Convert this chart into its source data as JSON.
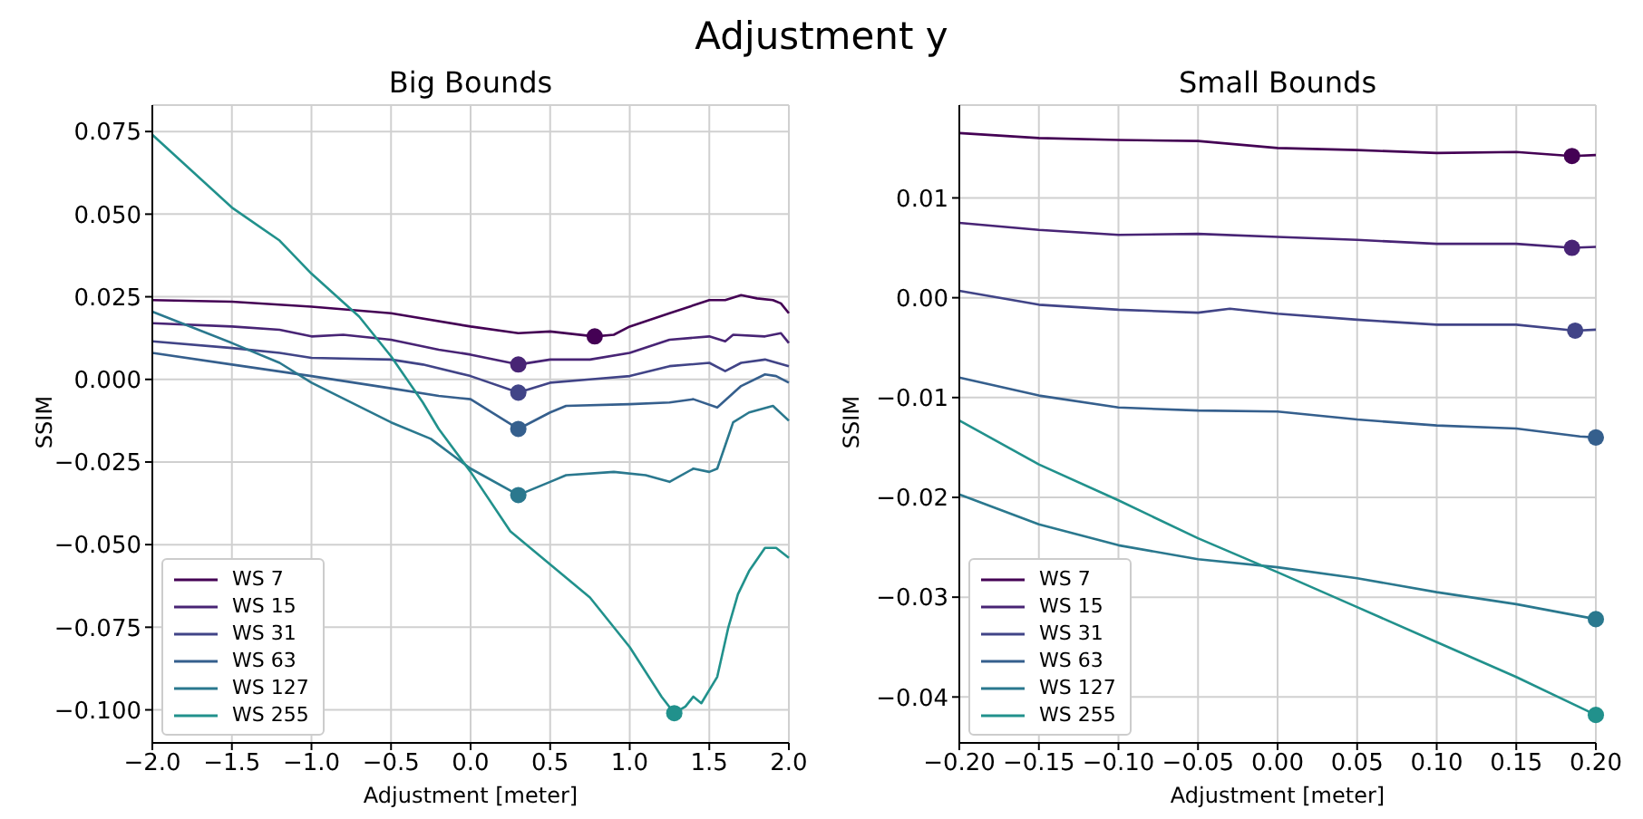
{
  "chart_data": [
    {
      "type": "line",
      "title": "Adjustment y",
      "subtitle": "Big Bounds",
      "xlabel": "Adjustment [meter]",
      "ylabel": "SSIM",
      "xlim": [
        -2,
        2
      ],
      "xticks": [
        {
          "value": -2,
          "label": "−2.0"
        },
        {
          "value": -1.5,
          "label": "−1.5"
        },
        {
          "value": -1,
          "label": "−1.0"
        },
        {
          "value": -0.5,
          "label": "−0.5"
        },
        {
          "value": 0,
          "label": "0.0"
        },
        {
          "value": 0.5,
          "label": "0.5"
        },
        {
          "value": 1,
          "label": "1.0"
        },
        {
          "value": 1.5,
          "label": "1.5"
        },
        {
          "value": 2,
          "label": "2.0"
        }
      ],
      "ylim": [
        -0.11,
        0.083
      ],
      "yticks": [
        {
          "value": -0.1,
          "label": "−0.100"
        },
        {
          "value": -0.075,
          "label": "−0.075"
        },
        {
          "value": -0.05,
          "label": "−0.050"
        },
        {
          "value": -0.025,
          "label": "−0.025"
        },
        {
          "value": 0,
          "label": "0.000"
        },
        {
          "value": 0.025,
          "label": "0.025"
        },
        {
          "value": 0.05,
          "label": "0.050"
        },
        {
          "value": 0.075,
          "label": "0.075"
        }
      ],
      "grid": true,
      "legend": "bottom left",
      "line_style": "solid",
      "series": [
        {
          "name": "WS 7",
          "color": "#440154",
          "x": [
            -2,
            -1.5,
            -1,
            -0.5,
            0,
            0.3,
            0.5,
            0.78,
            0.9,
            1,
            1.25,
            1.5,
            1.6,
            1.7,
            1.8,
            1.9,
            1.95,
            2
          ],
          "values": [
            0.024,
            0.0235,
            0.022,
            0.02,
            0.016,
            0.014,
            0.0145,
            0.013,
            0.0135,
            0.016,
            0.02,
            0.024,
            0.024,
            0.0255,
            0.0245,
            0.024,
            0.023,
            0.02
          ]
        },
        {
          "name": "WS 15",
          "color": "#482475",
          "x": [
            -2,
            -1.5,
            -1.2,
            -1,
            -0.8,
            -0.5,
            -0.2,
            0,
            0.3,
            0.5,
            0.75,
            1,
            1.25,
            1.5,
            1.6,
            1.65,
            1.85,
            1.95,
            2
          ],
          "values": [
            0.017,
            0.016,
            0.015,
            0.013,
            0.0135,
            0.012,
            0.009,
            0.0075,
            0.0045,
            0.006,
            0.006,
            0.008,
            0.012,
            0.013,
            0.0115,
            0.0135,
            0.013,
            0.014,
            0.011
          ]
        },
        {
          "name": "WS 31",
          "color": "#414487",
          "x": [
            -2,
            -1.5,
            -1.2,
            -1,
            -0.5,
            -0.3,
            0,
            0.3,
            0.5,
            0.75,
            1,
            1.25,
            1.5,
            1.6,
            1.7,
            1.85,
            2
          ],
          "values": [
            0.0115,
            0.0095,
            0.008,
            0.0065,
            0.006,
            0.0045,
            0.001,
            -0.004,
            -0.001,
            0.0,
            0.001,
            0.004,
            0.005,
            0.0025,
            0.005,
            0.006,
            0.004
          ]
        },
        {
          "name": "WS 63",
          "color": "#355f8d",
          "x": [
            -2,
            -1.5,
            -1,
            -0.5,
            -0.2,
            0,
            0.3,
            0.5,
            0.6,
            1,
            1.25,
            1.4,
            1.55,
            1.7,
            1.85,
            1.92,
            2
          ],
          "values": [
            0.008,
            0.0045,
            0.001,
            -0.0027,
            -0.005,
            -0.006,
            -0.015,
            -0.01,
            -0.008,
            -0.0075,
            -0.007,
            -0.006,
            -0.0085,
            -0.002,
            0.0015,
            0.001,
            -0.001
          ]
        },
        {
          "name": "WS 127",
          "color": "#2a788e",
          "x": [
            -2,
            -1.5,
            -1.2,
            -1,
            -0.5,
            -0.25,
            0,
            0.3,
            0.5,
            0.6,
            0.9,
            1.1,
            1.25,
            1.4,
            1.5,
            1.55,
            1.6,
            1.65,
            1.75,
            1.9,
            2
          ],
          "values": [
            0.0205,
            0.011,
            0.005,
            -0.001,
            -0.013,
            -0.018,
            -0.027,
            -0.035,
            -0.031,
            -0.029,
            -0.028,
            -0.029,
            -0.031,
            -0.027,
            -0.028,
            -0.027,
            -0.02,
            -0.013,
            -0.01,
            -0.008,
            -0.0125
          ]
        },
        {
          "name": "WS 255",
          "color": "#21918c",
          "x": [
            -2,
            -1.5,
            -1.2,
            -1,
            -0.7,
            -0.5,
            -0.3,
            -0.2,
            0,
            0.25,
            0.5,
            0.75,
            1,
            1.2,
            1.28,
            1.35,
            1.4,
            1.45,
            1.55,
            1.62,
            1.68,
            1.75,
            1.85,
            1.92,
            2
          ],
          "values": [
            0.074,
            0.052,
            0.042,
            0.032,
            0.019,
            0.007,
            -0.007,
            -0.015,
            -0.028,
            -0.046,
            -0.056,
            -0.066,
            -0.081,
            -0.096,
            -0.101,
            -0.099,
            -0.096,
            -0.098,
            -0.09,
            -0.075,
            -0.065,
            -0.058,
            -0.051,
            -0.051,
            -0.054
          ]
        },
        {
          "type": "scatter",
          "color": "#440154",
          "x": [
            0.78
          ],
          "values": [
            0.013
          ]
        },
        {
          "type": "scatter",
          "color": "#482475",
          "x": [
            0.3
          ],
          "values": [
            0.0045
          ]
        },
        {
          "type": "scatter",
          "color": "#414487",
          "x": [
            0.3
          ],
          "values": [
            -0.004
          ]
        },
        {
          "type": "scatter",
          "color": "#355f8d",
          "x": [
            0.3
          ],
          "values": [
            -0.015
          ]
        },
        {
          "type": "scatter",
          "color": "#2a788e",
          "x": [
            0.3
          ],
          "values": [
            -0.035
          ]
        },
        {
          "type": "scatter",
          "color": "#21918c",
          "x": [
            1.28
          ],
          "values": [
            -0.101
          ]
        }
      ]
    },
    {
      "type": "line",
      "subtitle": "Small Bounds",
      "xlabel": "Adjustment [meter]",
      "ylabel": "SSIM",
      "xlim": [
        -0.2,
        0.2
      ],
      "xticks": [
        {
          "value": -0.2,
          "label": "−0.20"
        },
        {
          "value": -0.15,
          "label": "−0.15"
        },
        {
          "value": -0.1,
          "label": "−0.10"
        },
        {
          "value": -0.05,
          "label": "−0.05"
        },
        {
          "value": 0,
          "label": "0.00"
        },
        {
          "value": 0.05,
          "label": "0.05"
        },
        {
          "value": 0.1,
          "label": "0.10"
        },
        {
          "value": 0.15,
          "label": "0.15"
        },
        {
          "value": 0.2,
          "label": "0.20"
        }
      ],
      "ylim": [
        -0.0446,
        0.0193
      ],
      "yticks": [
        {
          "value": -0.04,
          "label": "−0.04"
        },
        {
          "value": -0.03,
          "label": "−0.03"
        },
        {
          "value": -0.02,
          "label": "−0.02"
        },
        {
          "value": -0.01,
          "label": "−0.01"
        },
        {
          "value": 0,
          "label": "0.00"
        },
        {
          "value": 0.01,
          "label": "0.01"
        }
      ],
      "grid": true,
      "legend": "bottom left",
      "line_style": "solid",
      "series": [
        {
          "name": "WS 7",
          "color": "#440154",
          "x": [
            -0.2,
            -0.15,
            -0.1,
            -0.05,
            0,
            0.05,
            0.1,
            0.15,
            0.185,
            0.2
          ],
          "values": [
            0.0165,
            0.016,
            0.0158,
            0.0157,
            0.015,
            0.0148,
            0.0145,
            0.0146,
            0.0142,
            0.0143
          ]
        },
        {
          "name": "WS 15",
          "color": "#482475",
          "x": [
            -0.2,
            -0.15,
            -0.1,
            -0.05,
            0,
            0.05,
            0.1,
            0.15,
            0.185,
            0.2
          ],
          "values": [
            0.0075,
            0.0068,
            0.0063,
            0.0064,
            0.0061,
            0.0058,
            0.0054,
            0.0054,
            0.005,
            0.0051
          ]
        },
        {
          "name": "WS 31",
          "color": "#414487",
          "x": [
            -0.2,
            -0.15,
            -0.1,
            -0.05,
            -0.03,
            0,
            0.05,
            0.1,
            0.15,
            0.187,
            0.2
          ],
          "values": [
            0.0007,
            -0.0007,
            -0.0012,
            -0.0015,
            -0.0011,
            -0.0016,
            -0.0022,
            -0.0027,
            -0.0027,
            -0.0033,
            -0.0032
          ]
        },
        {
          "name": "WS 63",
          "color": "#355f8d",
          "x": [
            -0.2,
            -0.15,
            -0.1,
            -0.05,
            0,
            0.05,
            0.1,
            0.15,
            0.19,
            0.2
          ],
          "values": [
            -0.008,
            -0.0098,
            -0.011,
            -0.0113,
            -0.0114,
            -0.0122,
            -0.0128,
            -0.0131,
            -0.0139,
            -0.014
          ]
        },
        {
          "name": "WS 127",
          "color": "#2a788e",
          "x": [
            -0.2,
            -0.15,
            -0.1,
            -0.05,
            0,
            0.05,
            0.1,
            0.15,
            0.2
          ],
          "values": [
            -0.0197,
            -0.0227,
            -0.0248,
            -0.0262,
            -0.027,
            -0.0281,
            -0.0295,
            -0.0307,
            -0.0322
          ]
        },
        {
          "name": "WS 255",
          "color": "#21918c",
          "x": [
            -0.2,
            -0.15,
            -0.1,
            -0.05,
            0,
            0.05,
            0.1,
            0.15,
            0.2
          ],
          "values": [
            -0.0123,
            -0.0167,
            -0.0203,
            -0.0241,
            -0.0275,
            -0.031,
            -0.0345,
            -0.038,
            -0.0418
          ]
        },
        {
          "type": "scatter",
          "color": "#440154",
          "x": [
            0.185
          ],
          "values": [
            0.0142
          ]
        },
        {
          "type": "scatter",
          "color": "#482475",
          "x": [
            0.185
          ],
          "values": [
            0.005
          ]
        },
        {
          "type": "scatter",
          "color": "#414487",
          "x": [
            0.187
          ],
          "values": [
            -0.0033
          ]
        },
        {
          "type": "scatter",
          "color": "#355f8d",
          "x": [
            0.2
          ],
          "values": [
            -0.014
          ]
        },
        {
          "type": "scatter",
          "color": "#2a788e",
          "x": [
            0.2
          ],
          "values": [
            -0.0322
          ]
        },
        {
          "type": "scatter",
          "color": "#21918c",
          "x": [
            0.2
          ],
          "values": [
            -0.0418
          ]
        }
      ]
    }
  ]
}
